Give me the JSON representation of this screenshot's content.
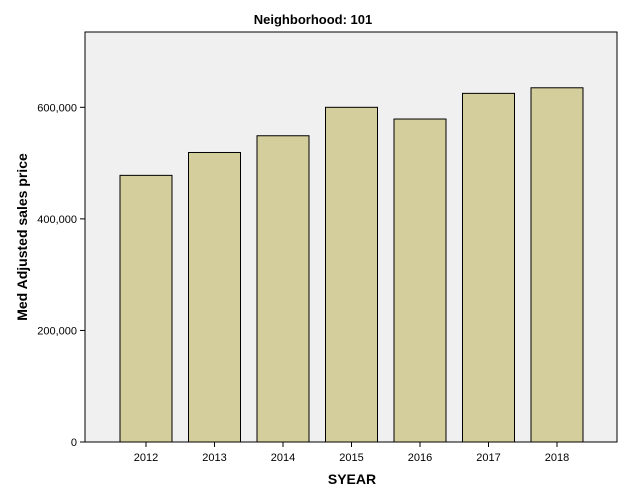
{
  "chart_data": {
    "type": "bar",
    "title": "Neighborhood: 101",
    "xlabel": "SYEAR",
    "ylabel": "Med Adjusted sales price",
    "categories": [
      "2012",
      "2013",
      "2014",
      "2015",
      "2016",
      "2017",
      "2018"
    ],
    "values": [
      478000,
      519000,
      549000,
      600000,
      579000,
      625000,
      635000
    ],
    "yticks": [
      0,
      200000,
      400000,
      600000
    ],
    "ytick_labels": [
      "0",
      "200,000",
      "400,000",
      "600,000"
    ],
    "ylim": [
      0,
      735000
    ],
    "grid": false,
    "legend": "none",
    "colors": {
      "bar_fill": "#d3ce9b",
      "bar_stroke": "#000000",
      "plot_background": "#f0f0f0",
      "axis": "#000000"
    }
  }
}
